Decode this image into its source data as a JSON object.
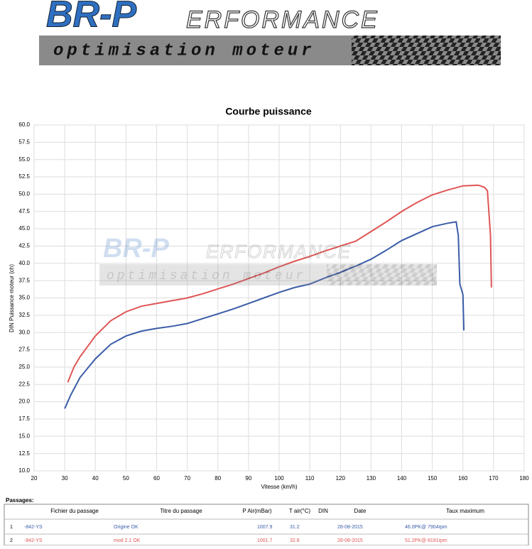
{
  "header": {
    "logo_main": "BR-P",
    "logo_rest": "ERFORMANCE",
    "tagline": "optimisation moteur"
  },
  "chart_data": {
    "type": "line",
    "title": "Courbe puissance",
    "xlabel": "Vitesse (km/h)",
    "ylabel": "DIN Puissance moteur (ch)",
    "xlim": [
      20,
      180
    ],
    "xticks": [
      20,
      30,
      40,
      50,
      60,
      70,
      80,
      90,
      100,
      110,
      120,
      130,
      140,
      150,
      160,
      170,
      180
    ],
    "ylim": [
      10,
      60
    ],
    "yticks": [
      {
        "value": 10,
        "label": "10.0"
      },
      12.5,
      {
        "value": 15,
        "label": "15.0"
      },
      17.5,
      {
        "value": 20,
        "label": "20.0"
      },
      22.5,
      {
        "value": 25,
        "label": "25.0"
      },
      27.5,
      {
        "value": 30,
        "label": "30.0"
      },
      32.5,
      {
        "value": 35,
        "label": "35.0"
      },
      37.5,
      {
        "value": 40,
        "label": "40.0"
      },
      42.5,
      {
        "value": 45,
        "label": "45.0"
      },
      47.5,
      {
        "value": 50,
        "label": "50.0"
      },
      52.5,
      {
        "value": 55,
        "label": "55.0"
      },
      57.5,
      {
        "value": 60,
        "label": "60.0"
      }
    ],
    "grid": true,
    "series": [
      {
        "color": "#3a5ca8",
        "x": [
          30,
          32,
          35,
          40,
          45,
          50,
          55,
          60,
          65,
          70,
          75,
          80,
          85,
          90,
          95,
          100,
          105,
          110,
          115,
          120,
          125,
          130,
          135,
          140,
          145,
          150,
          155,
          157.8,
          158.5,
          159,
          160,
          160.3
        ],
        "values": [
          19.0,
          21.0,
          23.5,
          26.2,
          28.3,
          29.5,
          30.2,
          30.6,
          30.9,
          31.3,
          32.0,
          32.7,
          33.4,
          34.2,
          35.0,
          35.8,
          36.5,
          37.0,
          37.9,
          38.7,
          39.6,
          40.6,
          41.9,
          43.3,
          44.3,
          45.3,
          45.8,
          46.0,
          44.0,
          37.0,
          35.5,
          30.3
        ]
      },
      {
        "color": "#e05555",
        "x": [
          31,
          33,
          35,
          40,
          45,
          50,
          55,
          60,
          65,
          70,
          75,
          80,
          85,
          90,
          95,
          100,
          105,
          110,
          115,
          120,
          125,
          130,
          135,
          140,
          145,
          150,
          155,
          160,
          165,
          167,
          168,
          169,
          169.3
        ],
        "values": [
          22.8,
          25.0,
          26.5,
          29.5,
          31.7,
          33.0,
          33.8,
          34.2,
          34.6,
          35.0,
          35.6,
          36.3,
          37.0,
          37.8,
          38.6,
          39.5,
          40.3,
          41.0,
          41.8,
          42.5,
          43.2,
          44.6,
          46.0,
          47.5,
          48.8,
          49.9,
          50.6,
          51.2,
          51.3,
          51.0,
          50.5,
          44.0,
          36.5
        ]
      }
    ]
  },
  "table": {
    "caption": "Passages:",
    "columns": [
      "Fichier du passage",
      "Titre du passage",
      "P Air(mBar)",
      "T air(°C)",
      "DIN",
      "Date",
      "Taux maximum"
    ],
    "rows": [
      [
        "1",
        "-842-YS",
        "Origine OK",
        "1007.9",
        "31.2",
        "28-08-2015",
        "46.0PK@ 7904rpm"
      ],
      [
        "2",
        "-842-YS",
        "mod 2.1 OK",
        "1001.7",
        "32.8",
        "28-08-2015",
        "51.2PK@ 8191rpm"
      ]
    ]
  }
}
